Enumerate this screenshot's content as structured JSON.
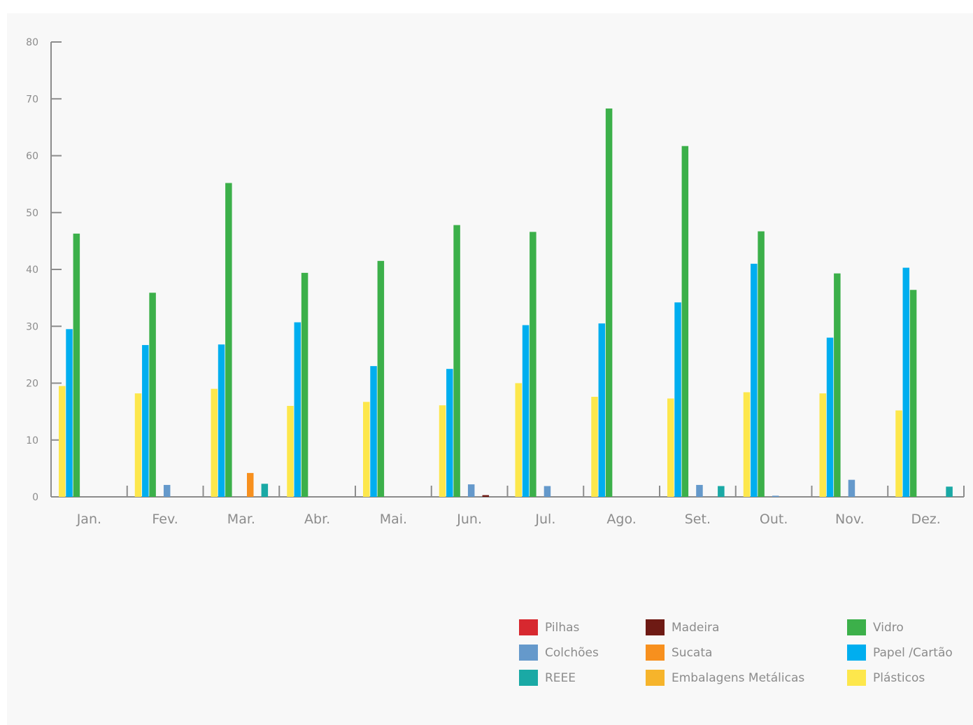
{
  "chart_data": {
    "type": "bar",
    "title": "",
    "xlabel": "",
    "ylabel": "",
    "ylim": [
      0,
      80
    ],
    "yticks": [
      "0",
      "10",
      "20",
      "30",
      "40",
      "50",
      "60",
      "70",
      "80"
    ],
    "grid": false,
    "legend_position": "bottom-right",
    "categories": [
      "Jan.",
      "Fev.",
      "Mar.",
      "Abr.",
      "Mai.",
      "Jun.",
      "Jul.",
      "Ago.",
      "Set.",
      "Out.",
      "Nov.",
      "Dez."
    ],
    "series": [
      {
        "name": "Plásticos",
        "color": "#fde74c",
        "values": [
          19.5,
          18.2,
          19.0,
          16.0,
          16.7,
          16.1,
          20.0,
          17.6,
          17.3,
          18.4,
          18.2,
          15.2
        ]
      },
      {
        "name": "Papel /Cartão",
        "color": "#00aeef",
        "values": [
          29.5,
          26.7,
          26.8,
          30.7,
          23.0,
          22.5,
          30.2,
          30.5,
          34.2,
          41.0,
          28.0,
          40.3
        ]
      },
      {
        "name": "Vidro",
        "color": "#3cb04a",
        "values": [
          46.3,
          35.9,
          55.2,
          39.4,
          41.5,
          47.8,
          46.6,
          68.3,
          61.7,
          46.7,
          39.3,
          36.4
        ]
      },
      {
        "name": "Embalagens Metálicas",
        "color": "#f6b42b",
        "values": [
          0,
          0,
          0,
          0,
          0,
          0,
          0,
          0,
          0,
          0,
          0,
          0
        ]
      },
      {
        "name": "Colchões",
        "color": "#6599cb",
        "values": [
          0,
          2.1,
          0,
          0,
          0,
          2.2,
          1.9,
          0,
          2.1,
          0.2,
          3.0,
          0
        ]
      },
      {
        "name": "Sucata",
        "color": "#f7901e",
        "values": [
          0,
          0,
          4.2,
          0,
          0,
          0,
          0,
          0,
          0,
          0,
          0,
          0
        ]
      },
      {
        "name": "Madeira",
        "color": "#6e1a14",
        "values": [
          0,
          0,
          0,
          0,
          0,
          0.3,
          0,
          0,
          0,
          0,
          0,
          0
        ]
      },
      {
        "name": "REEE",
        "color": "#1aa9a5",
        "values": [
          0,
          0,
          2.3,
          0,
          0,
          0,
          0,
          0,
          1.9,
          0,
          0,
          1.8
        ]
      },
      {
        "name": "Pilhas",
        "color": "#d7282f",
        "values": [
          0,
          0,
          0,
          0,
          0,
          0,
          0,
          0,
          0,
          0,
          0,
          0
        ]
      }
    ]
  },
  "legend": [
    {
      "label": "Pilhas",
      "color": "#d7282f"
    },
    {
      "label": "Colchões",
      "color": "#6599cb"
    },
    {
      "label": "REEE",
      "color": "#1aa9a5"
    },
    {
      "label": "Madeira",
      "color": "#6e1a14"
    },
    {
      "label": "Sucata",
      "color": "#f7901e"
    },
    {
      "label": "Embalagens Metálicas",
      "color": "#f6b42b"
    },
    {
      "label": "Vidro",
      "color": "#3cb04a"
    },
    {
      "label": "Papel /Cartão",
      "color": "#00aeef"
    },
    {
      "label": "Plásticos",
      "color": "#fde74c"
    }
  ]
}
